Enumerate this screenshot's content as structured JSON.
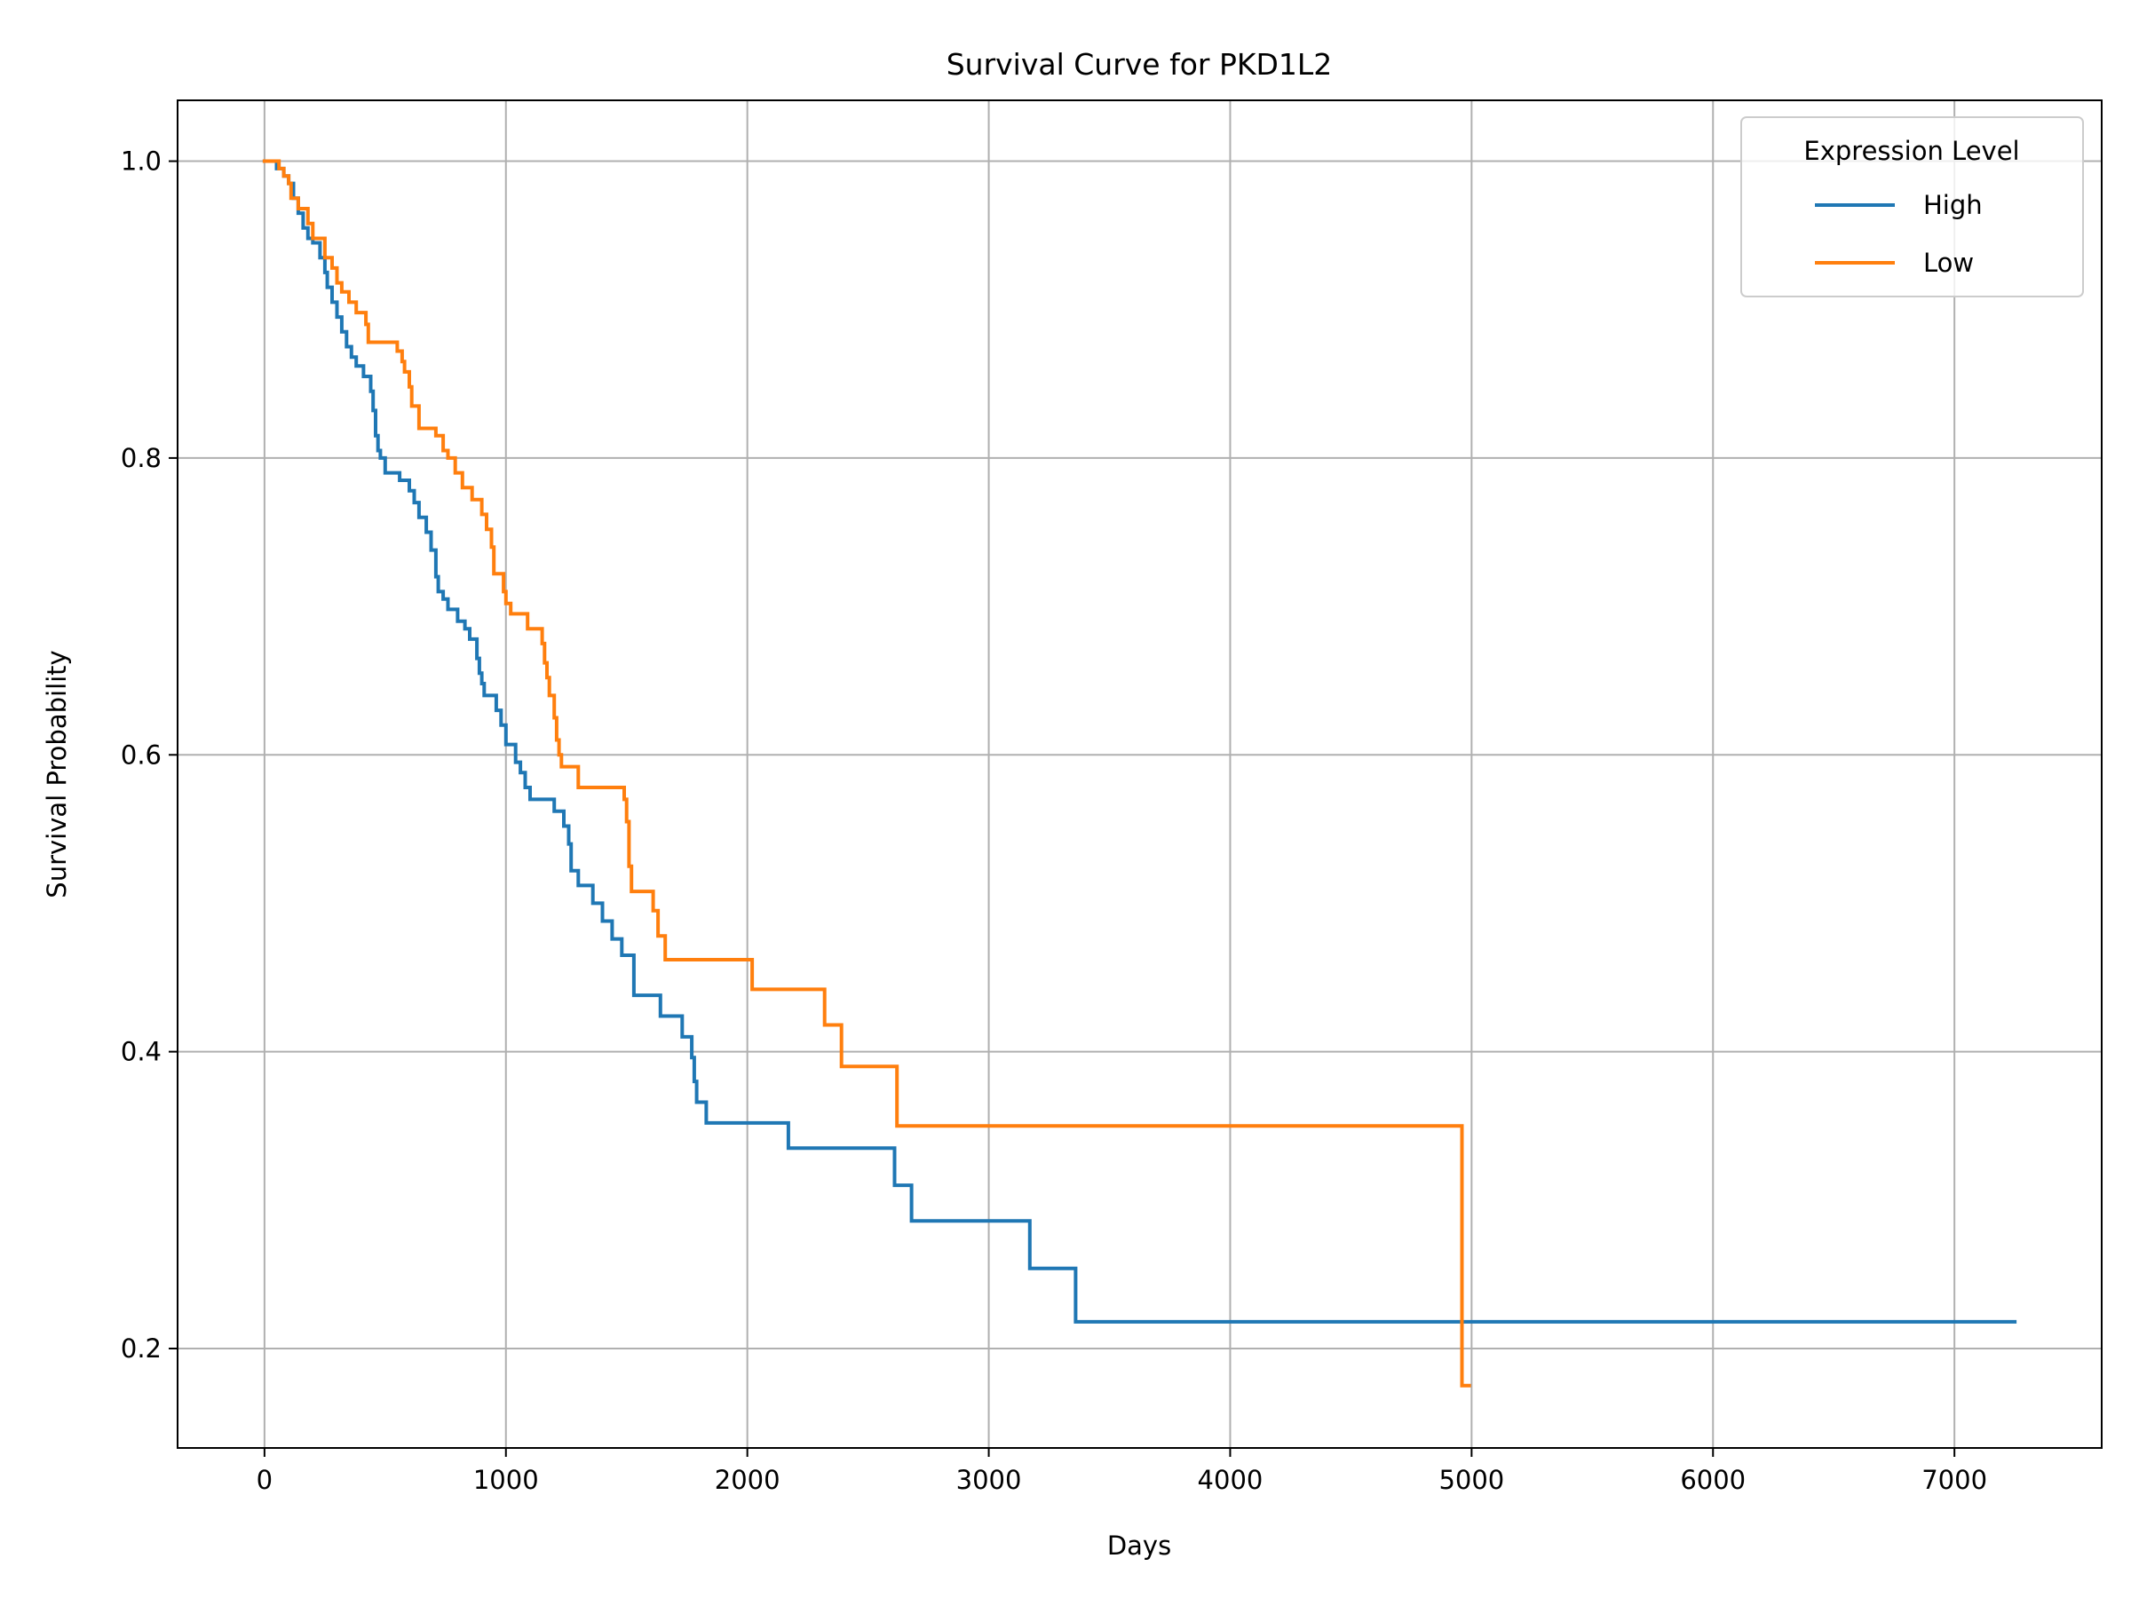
{
  "chart_data": {
    "type": "line",
    "step": true,
    "title": "Survival Curve for PKD1L2",
    "xlabel": "Days",
    "ylabel": "Survival Probability",
    "xlim": [
      -360,
      7610
    ],
    "ylim": [
      0.133,
      1.041
    ],
    "xticks": [
      0,
      1000,
      2000,
      3000,
      4000,
      5000,
      6000,
      7000
    ],
    "yticks": [
      0.2,
      0.4,
      0.6,
      0.8,
      1.0
    ],
    "xtick_labels": [
      "0",
      "1000",
      "2000",
      "3000",
      "4000",
      "5000",
      "6000",
      "7000"
    ],
    "ytick_labels": [
      "0.2",
      "0.4",
      "0.6",
      "0.8",
      "1.0"
    ],
    "grid": true,
    "legend": {
      "title": "Expression Level",
      "position": "top-right"
    },
    "series": [
      {
        "name": "High",
        "color": "#1f77b4",
        "points": [
          [
            0,
            1.0
          ],
          [
            50,
            0.995
          ],
          [
            80,
            0.99
          ],
          [
            100,
            0.985
          ],
          [
            120,
            0.975
          ],
          [
            140,
            0.965
          ],
          [
            160,
            0.955
          ],
          [
            180,
            0.948
          ],
          [
            200,
            0.945
          ],
          [
            230,
            0.935
          ],
          [
            250,
            0.925
          ],
          [
            260,
            0.915
          ],
          [
            280,
            0.905
          ],
          [
            300,
            0.895
          ],
          [
            320,
            0.885
          ],
          [
            340,
            0.875
          ],
          [
            360,
            0.868
          ],
          [
            380,
            0.862
          ],
          [
            410,
            0.855
          ],
          [
            440,
            0.845
          ],
          [
            450,
            0.832
          ],
          [
            460,
            0.815
          ],
          [
            470,
            0.805
          ],
          [
            480,
            0.8
          ],
          [
            500,
            0.79
          ],
          [
            560,
            0.785
          ],
          [
            600,
            0.778
          ],
          [
            620,
            0.77
          ],
          [
            640,
            0.76
          ],
          [
            670,
            0.75
          ],
          [
            690,
            0.738
          ],
          [
            710,
            0.72
          ],
          [
            720,
            0.71
          ],
          [
            740,
            0.705
          ],
          [
            760,
            0.698
          ],
          [
            800,
            0.69
          ],
          [
            830,
            0.685
          ],
          [
            850,
            0.678
          ],
          [
            880,
            0.665
          ],
          [
            890,
            0.655
          ],
          [
            900,
            0.648
          ],
          [
            910,
            0.64
          ],
          [
            960,
            0.63
          ],
          [
            980,
            0.62
          ],
          [
            1000,
            0.607
          ],
          [
            1040,
            0.595
          ],
          [
            1060,
            0.588
          ],
          [
            1080,
            0.578
          ],
          [
            1100,
            0.57
          ],
          [
            1200,
            0.562
          ],
          [
            1240,
            0.552
          ],
          [
            1260,
            0.54
          ],
          [
            1270,
            0.522
          ],
          [
            1300,
            0.512
          ],
          [
            1360,
            0.5
          ],
          [
            1400,
            0.488
          ],
          [
            1440,
            0.476
          ],
          [
            1480,
            0.465
          ],
          [
            1530,
            0.438
          ],
          [
            1640,
            0.424
          ],
          [
            1730,
            0.41
          ],
          [
            1770,
            0.396
          ],
          [
            1780,
            0.38
          ],
          [
            1790,
            0.366
          ],
          [
            1830,
            0.352
          ],
          [
            2170,
            0.335
          ],
          [
            2610,
            0.31
          ],
          [
            2680,
            0.286
          ],
          [
            3170,
            0.254
          ],
          [
            3360,
            0.218
          ],
          [
            7250,
            0.218
          ]
        ]
      },
      {
        "name": "Low",
        "color": "#ff7f0e",
        "points": [
          [
            0,
            1.0
          ],
          [
            30,
            1.0
          ],
          [
            60,
            0.995
          ],
          [
            80,
            0.99
          ],
          [
            100,
            0.985
          ],
          [
            110,
            0.975
          ],
          [
            140,
            0.968
          ],
          [
            180,
            0.958
          ],
          [
            200,
            0.948
          ],
          [
            250,
            0.935
          ],
          [
            280,
            0.928
          ],
          [
            300,
            0.918
          ],
          [
            320,
            0.912
          ],
          [
            350,
            0.905
          ],
          [
            380,
            0.898
          ],
          [
            420,
            0.89
          ],
          [
            430,
            0.878
          ],
          [
            550,
            0.872
          ],
          [
            570,
            0.865
          ],
          [
            580,
            0.858
          ],
          [
            600,
            0.848
          ],
          [
            610,
            0.835
          ],
          [
            640,
            0.82
          ],
          [
            710,
            0.815
          ],
          [
            740,
            0.805
          ],
          [
            760,
            0.8
          ],
          [
            790,
            0.79
          ],
          [
            820,
            0.78
          ],
          [
            860,
            0.772
          ],
          [
            900,
            0.762
          ],
          [
            920,
            0.752
          ],
          [
            940,
            0.74
          ],
          [
            950,
            0.722
          ],
          [
            990,
            0.71
          ],
          [
            1000,
            0.702
          ],
          [
            1020,
            0.695
          ],
          [
            1090,
            0.685
          ],
          [
            1150,
            0.675
          ],
          [
            1160,
            0.662
          ],
          [
            1170,
            0.652
          ],
          [
            1180,
            0.64
          ],
          [
            1200,
            0.625
          ],
          [
            1210,
            0.61
          ],
          [
            1220,
            0.6
          ],
          [
            1230,
            0.592
          ],
          [
            1300,
            0.578
          ],
          [
            1490,
            0.57
          ],
          [
            1500,
            0.555
          ],
          [
            1510,
            0.525
          ],
          [
            1520,
            0.508
          ],
          [
            1610,
            0.495
          ],
          [
            1630,
            0.478
          ],
          [
            1660,
            0.462
          ],
          [
            2020,
            0.442
          ],
          [
            2320,
            0.418
          ],
          [
            2390,
            0.39
          ],
          [
            2620,
            0.35
          ],
          [
            4960,
            0.175
          ],
          [
            4990,
            0.175
          ]
        ]
      }
    ]
  }
}
